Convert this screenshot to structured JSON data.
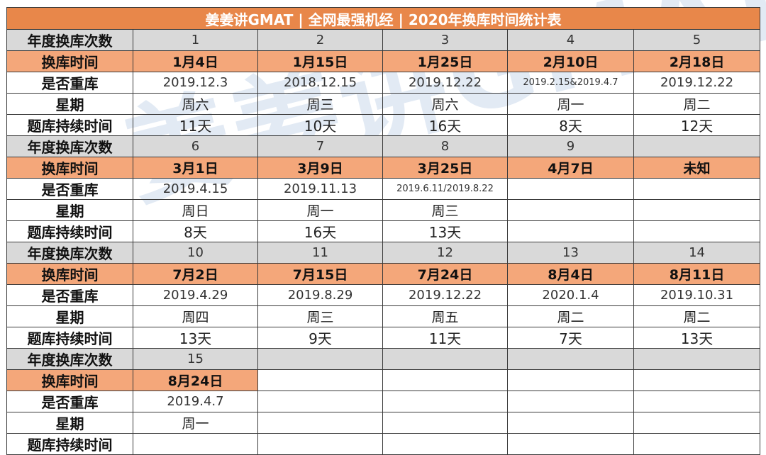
{
  "title": "姜姜讲GMAT | 全网最强机经 | 2020年换库时间统计表",
  "watermark": "姜姜讲GMAT",
  "row_labels": {
    "count": "年度换库次数",
    "time": "换库时间",
    "repeat": "是否重库",
    "weekday": "星期",
    "duration": "题库持续时间"
  },
  "blocks": [
    {
      "counts": [
        "1",
        "2",
        "3",
        "4",
        "5"
      ],
      "times": [
        "1月4日",
        "1月15日",
        "1月25日",
        "2月10日",
        "2月18日"
      ],
      "repeats": [
        "2019.12.3",
        "2018.12.15",
        "2019.12.22",
        "2019.2.15&2019.4.7",
        "2019.12.22"
      ],
      "weekdays": [
        "周六",
        "周三",
        "周六",
        "周一",
        "周二"
      ],
      "durations": [
        "11天",
        "10天",
        "16天",
        "8天",
        "12天"
      ]
    },
    {
      "counts": [
        "6",
        "7",
        "8",
        "9",
        ""
      ],
      "times": [
        "3月1日",
        "3月9日",
        "3月25日",
        "4月7日",
        "未知"
      ],
      "repeats": [
        "2019.4.15",
        "2019.11.13",
        "2019.6.11/2019.8.22",
        "",
        ""
      ],
      "weekdays": [
        "周日",
        "周一",
        "周三",
        "",
        ""
      ],
      "durations": [
        "8天",
        "16天",
        "13天",
        "",
        ""
      ]
    },
    {
      "counts": [
        "10",
        "11",
        "12",
        "13",
        "14"
      ],
      "times": [
        "7月2日",
        "7月15日",
        "7月24日",
        "8月4日",
        "8月11日"
      ],
      "repeats": [
        "2019.4.29",
        "2019.8.29",
        "2019.12.22",
        "2020.1.4",
        "2019.10.31"
      ],
      "weekdays": [
        "周四",
        "周三",
        "周五",
        "周二",
        "周二"
      ],
      "durations": [
        "13天",
        "9天",
        "11天",
        "7天",
        "13天"
      ]
    },
    {
      "counts": [
        "15",
        "",
        "",
        "",
        ""
      ],
      "times": [
        "8月24日",
        "",
        "",
        "",
        ""
      ],
      "repeats": [
        "2019.4.7",
        "",
        "",
        "",
        ""
      ],
      "weekdays": [
        "周一",
        "",
        "",
        "",
        ""
      ],
      "durations": [
        "",
        "",
        "",
        "",
        ""
      ]
    }
  ],
  "colors": {
    "title_bg": "#e8874a",
    "count_row_bg": "#d9d9d9",
    "time_row_bg": "#f4a77a"
  }
}
